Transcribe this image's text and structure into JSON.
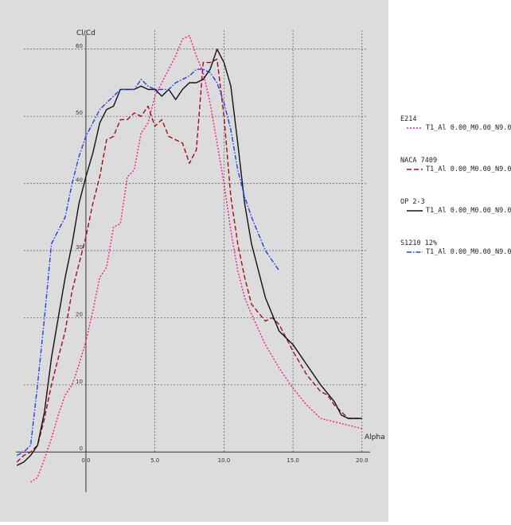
{
  "chart_data": {
    "type": "line",
    "xlabel": "Alpha",
    "ylabel": "Cl/Cd",
    "xlim": [
      -5.3,
      20.3
    ],
    "ylim": [
      -8.5,
      64
    ],
    "x_ticks": [
      0,
      5,
      10,
      15,
      20
    ],
    "x_tick_labels": [
      "0.0",
      "5.0",
      "10.0",
      "15.0",
      "20.0"
    ],
    "y_ticks": [
      0,
      10,
      20,
      30,
      40,
      50,
      60
    ],
    "y_tick_labels": [
      "0",
      "10",
      "20",
      "30",
      "40",
      "50",
      "60"
    ],
    "grid": true,
    "legend_position": "right",
    "series": [
      {
        "name": "E214",
        "legend_label": "T1_Al 0.00_M0.00_N9.0",
        "color": "#ff1493",
        "dash": "2,2",
        "points": [
          [
            -4,
            -4.5
          ],
          [
            -3.5,
            -3.8
          ],
          [
            -3,
            -1
          ],
          [
            -2.5,
            2
          ],
          [
            -2,
            5.5
          ],
          [
            -1.5,
            8.5
          ],
          [
            -1,
            10
          ],
          [
            -0.5,
            13
          ],
          [
            0,
            16.5
          ],
          [
            0.5,
            21
          ],
          [
            1,
            26
          ],
          [
            1.5,
            27.5
          ],
          [
            2,
            33.5
          ],
          [
            2.5,
            34
          ],
          [
            3,
            41
          ],
          [
            3.5,
            42
          ],
          [
            4,
            47.5
          ],
          [
            4.5,
            49
          ],
          [
            5,
            53
          ],
          [
            5.5,
            55
          ],
          [
            6,
            57
          ],
          [
            6.5,
            59
          ],
          [
            7,
            61.5
          ],
          [
            7.5,
            62
          ],
          [
            8,
            59
          ],
          [
            8.5,
            56.5
          ],
          [
            9,
            52
          ],
          [
            9.5,
            46
          ],
          [
            10,
            40
          ],
          [
            10.5,
            33
          ],
          [
            11,
            27
          ],
          [
            11.5,
            23
          ],
          [
            12,
            20.5
          ],
          [
            13,
            16
          ],
          [
            14,
            12.5
          ],
          [
            15,
            9.5
          ],
          [
            16,
            7
          ],
          [
            17,
            5
          ],
          [
            18,
            4.5
          ],
          [
            19,
            4
          ],
          [
            20,
            3.5
          ]
        ]
      },
      {
        "name": "NACA 7409",
        "legend_label": "T1_Al 0.00_M0.00_N9.0",
        "color": "#a01010",
        "dash": "6,3",
        "points": [
          [
            -5,
            -1.5
          ],
          [
            -4.5,
            -0.5
          ],
          [
            -4,
            0
          ],
          [
            -3.5,
            1
          ],
          [
            -3,
            5
          ],
          [
            -2.5,
            10
          ],
          [
            -2,
            14
          ],
          [
            -1.5,
            18
          ],
          [
            -1,
            24
          ],
          [
            -0.5,
            28
          ],
          [
            0,
            32
          ],
          [
            0.5,
            37
          ],
          [
            1,
            41
          ],
          [
            1.5,
            46.5
          ],
          [
            2,
            47
          ],
          [
            2.5,
            49.5
          ],
          [
            3,
            49.5
          ],
          [
            3.5,
            50.5
          ],
          [
            4,
            50
          ],
          [
            4.5,
            51.5
          ],
          [
            5,
            48.5
          ],
          [
            5.5,
            49.5
          ],
          [
            6,
            47
          ],
          [
            6.5,
            46.5
          ],
          [
            7,
            46
          ],
          [
            7.5,
            43
          ],
          [
            8,
            45
          ],
          [
            8.5,
            58
          ],
          [
            9,
            58
          ],
          [
            9.5,
            58.5
          ],
          [
            10,
            50
          ],
          [
            10.5,
            38
          ],
          [
            11,
            31
          ],
          [
            11.5,
            26
          ],
          [
            12,
            22
          ],
          [
            13,
            19.5
          ],
          [
            13.5,
            20
          ],
          [
            14,
            19
          ],
          [
            15,
            15
          ],
          [
            16,
            11.5
          ],
          [
            17,
            9
          ],
          [
            17.5,
            8.5
          ],
          [
            18,
            7
          ],
          [
            19,
            5
          ],
          [
            20,
            5
          ]
        ]
      },
      {
        "name": "OP 2-3",
        "legend_label": "T1_Al 0.00_M0.00_N9.0",
        "color": "#111111",
        "dash": "",
        "points": [
          [
            -5,
            -2
          ],
          [
            -4.5,
            -1.5
          ],
          [
            -4,
            -0.5
          ],
          [
            -3.5,
            1
          ],
          [
            -3,
            6
          ],
          [
            -2.5,
            14
          ],
          [
            -2,
            20
          ],
          [
            -1.5,
            26
          ],
          [
            -1,
            31
          ],
          [
            -0.5,
            37
          ],
          [
            0,
            41
          ],
          [
            0.5,
            44.5
          ],
          [
            1,
            49
          ],
          [
            1.5,
            51
          ],
          [
            2,
            51.5
          ],
          [
            2.5,
            54
          ],
          [
            3,
            54
          ],
          [
            3.5,
            54
          ],
          [
            4,
            54.5
          ],
          [
            4.5,
            54
          ],
          [
            5,
            54
          ],
          [
            5.5,
            53
          ],
          [
            6,
            54
          ],
          [
            6.5,
            52.5
          ],
          [
            7,
            54
          ],
          [
            7.5,
            55
          ],
          [
            8,
            55
          ],
          [
            8.5,
            55.5
          ],
          [
            9,
            57
          ],
          [
            9.5,
            60
          ],
          [
            10,
            58
          ],
          [
            10.5,
            54.5
          ],
          [
            11,
            46
          ],
          [
            11.5,
            37
          ],
          [
            12,
            31
          ],
          [
            13,
            23
          ],
          [
            14,
            18
          ],
          [
            15,
            16
          ],
          [
            16,
            13
          ],
          [
            17,
            10
          ],
          [
            18,
            7.5
          ],
          [
            18.5,
            5.5
          ],
          [
            19,
            5
          ],
          [
            20,
            5
          ]
        ]
      },
      {
        "name": "S1210 12%",
        "legend_label": "T1_Al 0.00_M0.00_N9.0",
        "color": "#1f3ff0",
        "dash": "6,2,1.5,2",
        "points": [
          [
            -5,
            -0.5
          ],
          [
            -4.5,
            0
          ],
          [
            -4,
            1
          ],
          [
            -3.5,
            10
          ],
          [
            -3,
            20
          ],
          [
            -2.5,
            31
          ],
          [
            -2,
            33
          ],
          [
            -1.5,
            35
          ],
          [
            -1,
            40
          ],
          [
            -0.5,
            44
          ],
          [
            0,
            47
          ],
          [
            0.5,
            49
          ],
          [
            1,
            51
          ],
          [
            1.5,
            52
          ],
          [
            2,
            53
          ],
          [
            2.5,
            54
          ],
          [
            3,
            54
          ],
          [
            3.5,
            54
          ],
          [
            4,
            55.5
          ],
          [
            4.5,
            54.5
          ],
          [
            5,
            54
          ],
          [
            5.5,
            54
          ],
          [
            6,
            54
          ],
          [
            6.5,
            55
          ],
          [
            7,
            55.5
          ],
          [
            7.5,
            56
          ],
          [
            8,
            57
          ],
          [
            8.5,
            57
          ],
          [
            9,
            56.5
          ],
          [
            9.5,
            55
          ],
          [
            10,
            52
          ],
          [
            10.5,
            48
          ],
          [
            11,
            42
          ],
          [
            11.5,
            38
          ],
          [
            12,
            35
          ],
          [
            13,
            30
          ],
          [
            14,
            27
          ]
        ]
      }
    ]
  }
}
